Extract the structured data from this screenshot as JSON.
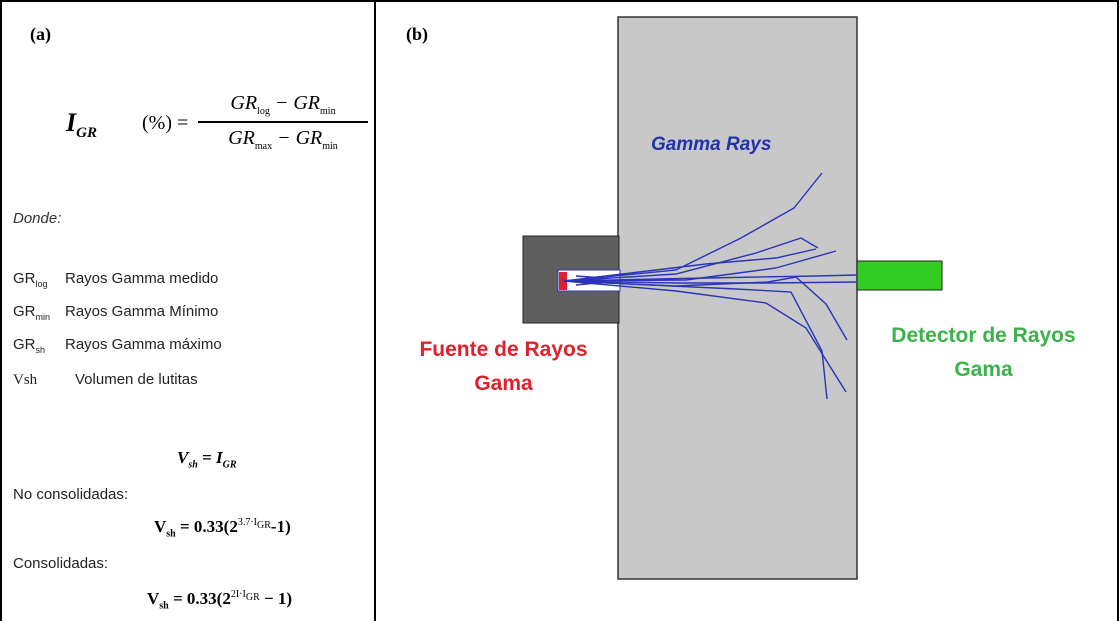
{
  "panel_a": {
    "label": "(a)",
    "igr_formula": {
      "lhs_symbol": "I",
      "lhs_subscript": "GR",
      "percent": "(%) =",
      "num_left": "GR",
      "num_left_sub": "log",
      "num_minus": " − ",
      "num_right": "GR",
      "num_right_sub": "min",
      "den_left": "GR",
      "den_left_sub": "max",
      "den_minus": " − ",
      "den_right": "GR",
      "den_right_sub": "min"
    },
    "donde": "Donde:",
    "definitions": [
      {
        "symbol": "GR",
        "sub": "log",
        "text": "Rayos Gamma medido"
      },
      {
        "symbol": "GR",
        "sub": "min",
        "text": "Rayos Gamma Mínimo"
      },
      {
        "symbol": "GR",
        "sub": "sh",
        "text": "Rayos Gamma máximo"
      },
      {
        "symbol": "Vsh",
        "sub": "",
        "text": "Volumen de lutitas"
      }
    ],
    "vsh_eq": {
      "lhs": "V",
      "lhs_sub": "sh",
      "eq": " = ",
      "rhs": "I",
      "rhs_sub": "GR"
    },
    "no_consolidadas": "No consolidadas:",
    "eq_nc": {
      "lhs": "V",
      "lhs_sub": "sh",
      "pre": " = 0.33(2",
      "exp": "3.7·I",
      "exp_sub": "GR",
      "post": "-1)"
    },
    "consolidadas": "Consolidadas:",
    "eq_c": {
      "lhs": "V",
      "lhs_sub": "sh",
      "pre": " = 0.33(2",
      "exp": "2I·I",
      "exp_sub": "GR",
      "post": " − 1)"
    }
  },
  "panel_b": {
    "label": "(b)",
    "gamma_rays": "Gamma Rays",
    "source_line1": "Fuente de Rayos",
    "source_line2": "Gama",
    "detector_line1": "Detector de Rayos",
    "detector_line2": "Gama",
    "colors": {
      "formation": "#c8c8c8",
      "source_housing": "#5f5f5f",
      "source_core": "#e02030",
      "detector": "#33cc22",
      "rays": "#2a34b8",
      "source_text": "#e0202a",
      "detector_text": "#3bb34a",
      "gamma_text": "#2233aa"
    }
  }
}
